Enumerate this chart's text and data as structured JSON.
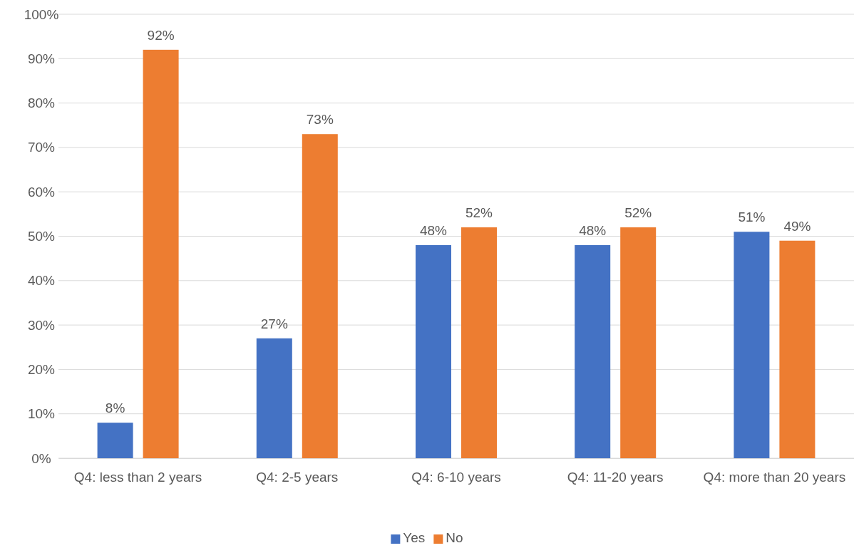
{
  "chart_data": {
    "type": "bar",
    "categories": [
      "Q4: less than 2 years",
      "Q4: 2-5 years",
      "Q4: 6-10 years",
      "Q4: 11-20 years",
      "Q4: more than 20 years"
    ],
    "series": [
      {
        "name": "Yes",
        "color": "#4472c4",
        "values": [
          8,
          27,
          48,
          48,
          51
        ]
      },
      {
        "name": "No",
        "color": "#ed7d31",
        "values": [
          92,
          73,
          52,
          52,
          49
        ]
      }
    ],
    "value_labels": [
      [
        "8%",
        "27%",
        "48%",
        "48%",
        "51%"
      ],
      [
        "92%",
        "73%",
        "52%",
        "52%",
        "49%"
      ]
    ],
    "ylim": [
      0,
      100
    ],
    "yticks": [
      {
        "value": 0,
        "label": "0%"
      },
      {
        "value": 10,
        "label": "10%"
      },
      {
        "value": 20,
        "label": "20%"
      },
      {
        "value": 30,
        "label": "30%"
      },
      {
        "value": 40,
        "label": "40%"
      },
      {
        "value": 50,
        "label": "50%"
      },
      {
        "value": 60,
        "label": "60%"
      },
      {
        "value": 70,
        "label": "70%"
      },
      {
        "value": 80,
        "label": "80%"
      },
      {
        "value": 90,
        "label": "90%"
      },
      {
        "value": 100,
        "label": "100%"
      }
    ],
    "grid": "y",
    "legend": "bottom"
  }
}
